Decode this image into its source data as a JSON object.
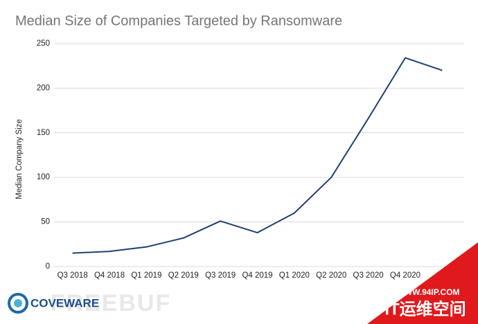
{
  "chart_data": {
    "type": "line",
    "title": "Median Size of Companies Targeted by Ransomware",
    "y_label": "Median Company Size",
    "categories": [
      "Q3 2018",
      "Q4 2018",
      "Q1 2019",
      "Q2 2019",
      "Q3 2019",
      "Q4 2019",
      "Q1 2020",
      "Q2 2020",
      "Q3 2020",
      "Q4 2020",
      null
    ],
    "series": [
      {
        "name": "Median Company Size",
        "color": "#1f3f73",
        "values": [
          15,
          17,
          22,
          32,
          51,
          38,
          60,
          100,
          166,
          234,
          220
        ]
      }
    ],
    "ylim": [
      0,
      250
    ],
    "yticks": [
      0,
      50,
      100,
      150,
      200,
      250
    ],
    "grid": true
  },
  "logo": "COVEWARE",
  "watermark": "FREEBUF",
  "corner_site": "WWW.94IP.COM",
  "corner_name": "IT运维空间"
}
